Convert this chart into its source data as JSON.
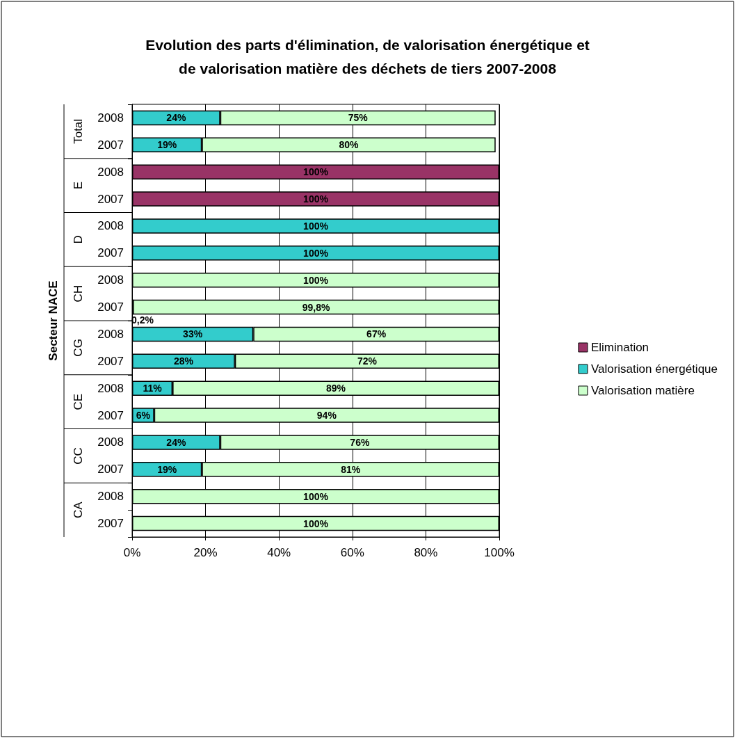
{
  "chart_data": {
    "type": "bar",
    "orientation": "horizontal",
    "stacked": true,
    "title": "Evolution des parts d'élimination, de valorisation énergétique et\nde valorisation matière des déchets de tiers 2007-2008",
    "ylabel": "Secteur NACE",
    "categories": [
      "2008",
      "2007",
      "2008",
      "2007",
      "2008",
      "2007",
      "2008",
      "2007",
      "2008",
      "2007",
      "2008",
      "2007",
      "2008",
      "2007",
      "2008",
      "2007"
    ],
    "annotations": [
      "Total",
      "E",
      "D",
      "CH",
      "CG",
      "CE",
      "CC",
      "CA"
    ],
    "series": [
      {
        "name": "Elimination",
        "color": "#993366",
        "values": [
          null,
          null,
          100,
          100,
          null,
          null,
          null,
          null,
          null,
          null,
          null,
          null,
          null,
          null,
          null,
          null
        ],
        "value_labels": [
          null,
          null,
          "100%",
          "100%",
          null,
          null,
          null,
          null,
          null,
          null,
          null,
          null,
          null,
          null,
          null,
          null
        ]
      },
      {
        "name": "Valorisation énergétique",
        "color": "#33cccc",
        "values": [
          24,
          19,
          null,
          null,
          100,
          100,
          null,
          0.2,
          33,
          28,
          11,
          6,
          24,
          19,
          null,
          null
        ],
        "value_labels": [
          "24%",
          "19%",
          null,
          null,
          "100%",
          "100%",
          null,
          "0,2%",
          "33%",
          "28%",
          "11%",
          "6%",
          "24%",
          "19%",
          null,
          null
        ]
      },
      {
        "name": "Valorisation matière",
        "color": "#ccffcc",
        "values": [
          75,
          80,
          null,
          null,
          null,
          null,
          100,
          99.8,
          67,
          72,
          89,
          94,
          76,
          81,
          100,
          100
        ],
        "value_labels": [
          "75%",
          "80%",
          null,
          null,
          null,
          null,
          "100%",
          "99,8%",
          "67%",
          "72%",
          "89%",
          "94%",
          "76%",
          "81%",
          "100%",
          "100%"
        ]
      }
    ],
    "xlim": [
      0,
      100
    ],
    "xticks": [
      {
        "value": 0,
        "label": "0%"
      },
      {
        "value": 20,
        "label": "20%"
      },
      {
        "value": 40,
        "label": "40%"
      },
      {
        "value": 60,
        "label": "60%"
      },
      {
        "value": 80,
        "label": "80%"
      },
      {
        "value": 100,
        "label": "100%"
      }
    ],
    "grid": "x",
    "legend": "right"
  }
}
